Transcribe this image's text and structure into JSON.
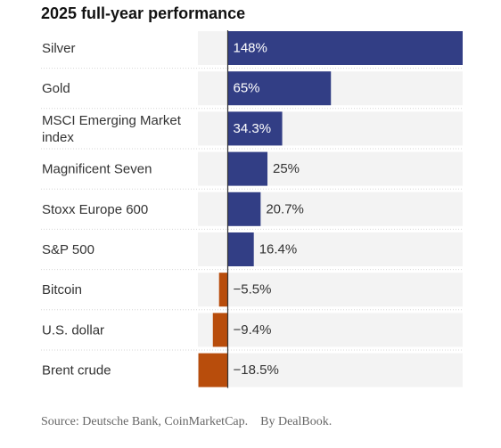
{
  "title": "2025 full-year performance",
  "source": "Source: Deutsche Bank, CoinMarketCap.",
  "credit": "By DealBook.",
  "colors": {
    "positive": "#323e85",
    "negative": "#b84d0c",
    "track": "#f3f3f3",
    "divider": "#d6d6d6",
    "axis": "#333333",
    "label_on_bar": "#ffffff",
    "label_off_bar": "#333333"
  },
  "chart_data": {
    "type": "bar",
    "orientation": "horizontal",
    "categories": [
      [
        "Silver"
      ],
      [
        "Gold"
      ],
      [
        "MSCI Emerging Market",
        "index"
      ],
      [
        "Magnificent Seven"
      ],
      [
        "Stoxx Europe 600"
      ],
      [
        "S&P 500"
      ],
      [
        "Bitcoin"
      ],
      [
        "U.S. dollar"
      ],
      [
        "Brent crude"
      ]
    ],
    "values": [
      148,
      65,
      34.3,
      25,
      20.7,
      16.4,
      -5.5,
      -9.4,
      -18.5
    ],
    "value_labels": [
      "148%",
      "65%",
      "34.3%",
      "25%",
      "20.7%",
      "16.4%",
      "−5.5%",
      "−9.4%",
      "−18.5%"
    ],
    "xlim": [
      -18.5,
      148
    ],
    "unit": "%"
  }
}
